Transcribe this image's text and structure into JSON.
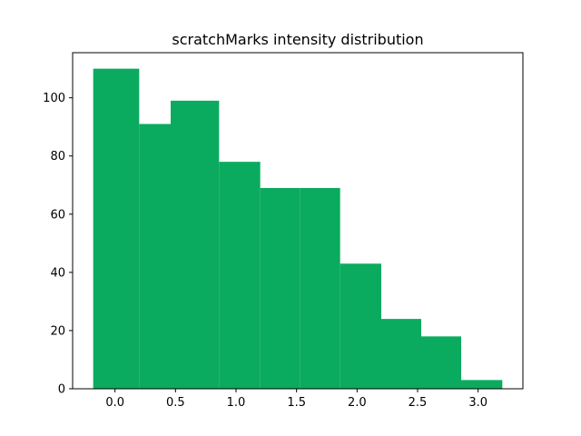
{
  "chart_data": {
    "type": "histogram",
    "title": "scratchMarks intensity distribution",
    "xlabel": "",
    "ylabel": "",
    "bar_color": "#0bab5f",
    "bin_edges": [
      -0.18,
      0.2,
      0.46,
      0.86,
      1.2,
      1.53,
      1.86,
      2.2,
      2.53,
      2.86,
      3.2
    ],
    "counts": [
      110,
      91,
      99,
      78,
      69,
      69,
      43,
      24,
      18,
      3
    ],
    "xlim": [
      -0.35,
      3.37
    ],
    "ylim": [
      0,
      115.5
    ],
    "x_ticks": [
      0.0,
      0.5,
      1.0,
      1.5,
      2.0,
      2.5,
      3.0
    ],
    "x_tick_labels": [
      "0.0",
      "0.5",
      "1.0",
      "1.5",
      "2.0",
      "2.5",
      "3.0"
    ],
    "y_ticks": [
      0,
      20,
      40,
      60,
      80,
      100
    ],
    "y_tick_labels": [
      "0",
      "20",
      "40",
      "60",
      "80",
      "100"
    ],
    "grid": false,
    "legend": "none"
  }
}
